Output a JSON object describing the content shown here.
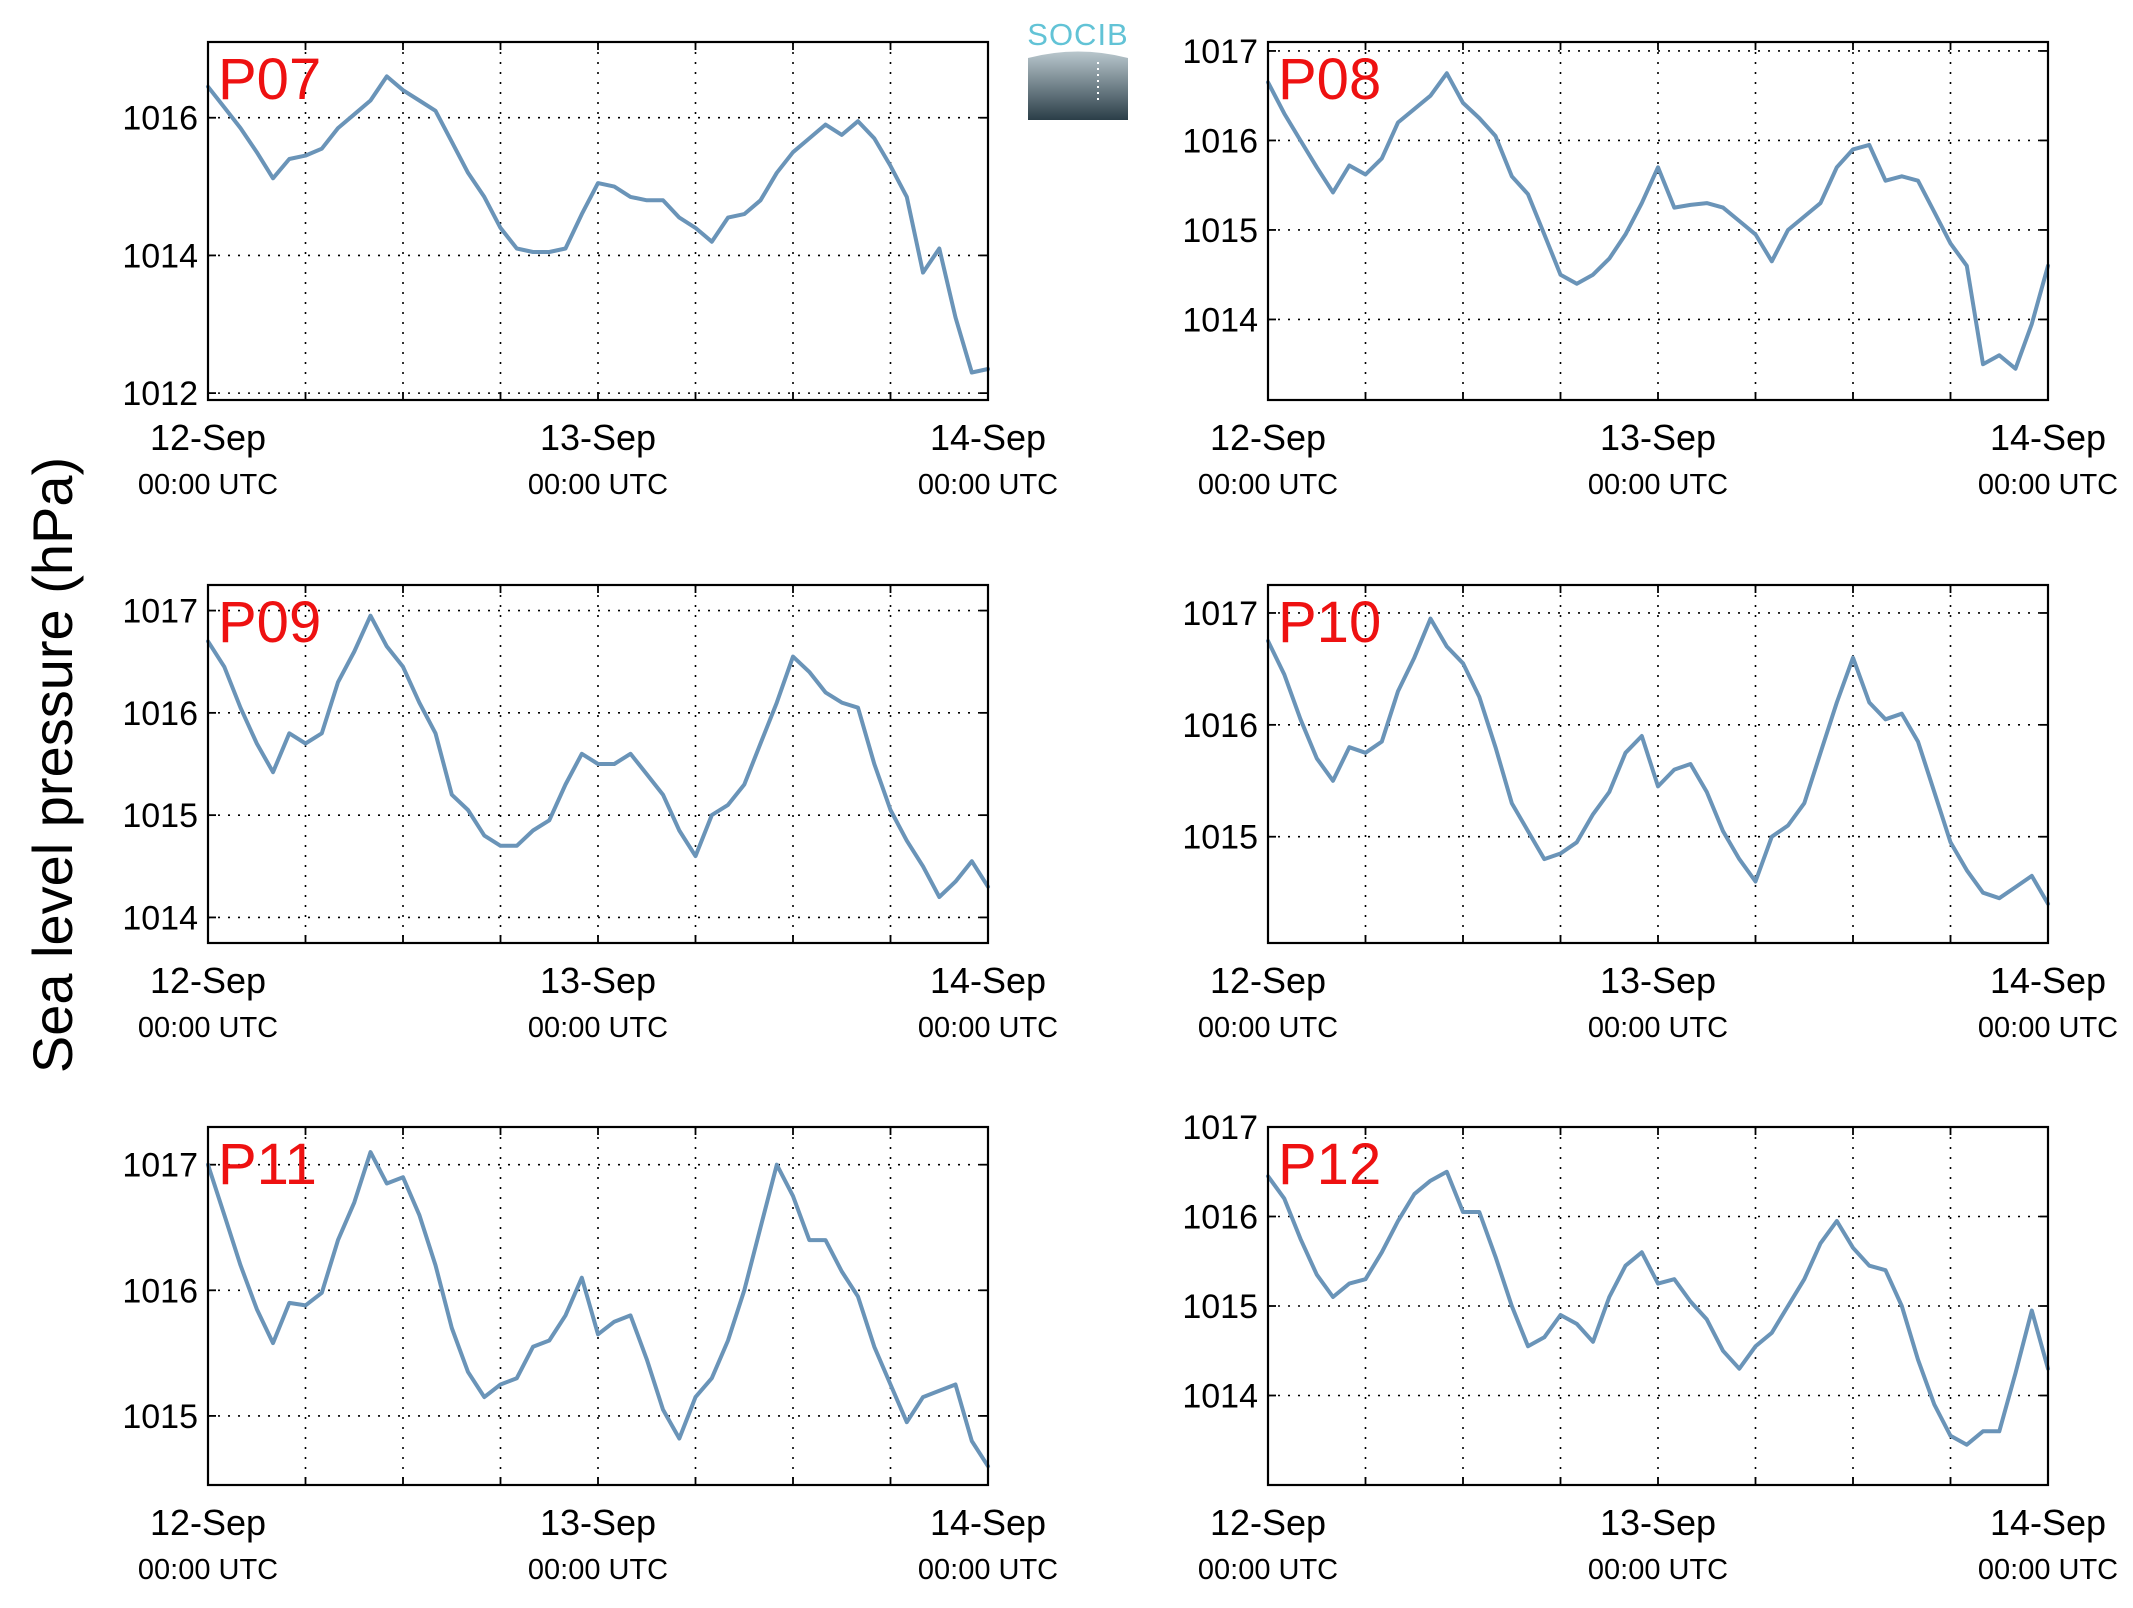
{
  "figure": {
    "ylabel": "Sea level pressure (hPa)",
    "logo_text": "SOCIB",
    "colors": {
      "series": "#6a94b8",
      "panel_label": "#ee1111",
      "logo_text": "#62c3d6",
      "logo_top": "#b9c7cd",
      "logo_bottom": "#2b3e48"
    }
  },
  "chart_data": [
    {
      "type": "line",
      "title": "",
      "panel_label": "P07",
      "xlabel": "",
      "ylabel": "Sea level pressure (hPa)",
      "x_range": [
        "2013-09-12T00:00",
        "2013-09-14T00:00"
      ],
      "xticks": [
        {
          "date": "12-Sep",
          "time": "00:00 UTC"
        },
        {
          "date": "13-Sep",
          "time": "00:00 UTC"
        },
        {
          "date": "14-Sep",
          "time": "00:00 UTC"
        }
      ],
      "ylim": [
        1011.9,
        1017.1
      ],
      "yticks": [
        1012,
        1014,
        1016
      ],
      "grid": true,
      "series": [
        {
          "x_hours": [
            0,
            1,
            2,
            3,
            4,
            5,
            6,
            7,
            8,
            9,
            10,
            11,
            12,
            13,
            14,
            15,
            16,
            17,
            18,
            19,
            20,
            21,
            22,
            23,
            24,
            25,
            26,
            27,
            28,
            29,
            30,
            31,
            32,
            33,
            34,
            35,
            36,
            37,
            38,
            39,
            40,
            41,
            42,
            43,
            44,
            45,
            46,
            47,
            48
          ],
          "values": [
            1016.45,
            1016.15,
            1015.85,
            1015.5,
            1015.12,
            1015.4,
            1015.45,
            1015.55,
            1015.85,
            1016.05,
            1016.25,
            1016.6,
            1016.4,
            1016.25,
            1016.1,
            1015.65,
            1015.2,
            1014.85,
            1014.4,
            1014.1,
            1014.05,
            1014.05,
            1014.1,
            1014.6,
            1015.05,
            1015.0,
            1014.85,
            1014.8,
            1014.8,
            1014.55,
            1014.4,
            1014.2,
            1014.55,
            1014.6,
            1014.8,
            1015.2,
            1015.5,
            1015.7,
            1015.9,
            1015.75,
            1015.95,
            1015.7,
            1015.3,
            1014.85,
            1013.75,
            1014.1,
            1013.1,
            1012.3,
            1012.35
          ]
        }
      ]
    },
    {
      "type": "line",
      "title": "",
      "panel_label": "P08",
      "xlabel": "",
      "ylabel": "Sea level pressure (hPa)",
      "x_range": [
        "2013-09-12T00:00",
        "2013-09-14T00:00"
      ],
      "xticks": [
        {
          "date": "12-Sep",
          "time": "00:00 UTC"
        },
        {
          "date": "13-Sep",
          "time": "00:00 UTC"
        },
        {
          "date": "14-Sep",
          "time": "00:00 UTC"
        }
      ],
      "ylim": [
        1013.1,
        1017.1
      ],
      "yticks": [
        1014,
        1015,
        1016,
        1017
      ],
      "grid": true,
      "series": [
        {
          "x_hours": [
            0,
            1,
            2,
            3,
            4,
            5,
            6,
            7,
            8,
            9,
            10,
            11,
            12,
            13,
            14,
            15,
            16,
            17,
            18,
            19,
            20,
            21,
            22,
            23,
            24,
            25,
            26,
            27,
            28,
            29,
            30,
            31,
            32,
            33,
            34,
            35,
            36,
            37,
            38,
            39,
            40,
            41,
            42,
            43,
            44,
            45,
            46,
            47,
            48
          ],
          "values": [
            1016.65,
            1016.3,
            1016.0,
            1015.7,
            1015.42,
            1015.72,
            1015.62,
            1015.8,
            1016.2,
            1016.35,
            1016.5,
            1016.75,
            1016.42,
            1016.25,
            1016.05,
            1015.6,
            1015.4,
            1014.95,
            1014.5,
            1014.4,
            1014.5,
            1014.68,
            1014.95,
            1015.3,
            1015.7,
            1015.25,
            1015.28,
            1015.3,
            1015.25,
            1015.1,
            1014.95,
            1014.65,
            1015.0,
            1015.15,
            1015.3,
            1015.7,
            1015.9,
            1015.95,
            1015.55,
            1015.6,
            1015.55,
            1015.2,
            1014.85,
            1014.6,
            1013.5,
            1013.6,
            1013.45,
            1013.95,
            1014.6
          ]
        }
      ]
    },
    {
      "type": "line",
      "title": "",
      "panel_label": "P09",
      "xlabel": "",
      "ylabel": "Sea level pressure (hPa)",
      "x_range": [
        "2013-09-12T00:00",
        "2013-09-14T00:00"
      ],
      "xticks": [
        {
          "date": "12-Sep",
          "time": "00:00 UTC"
        },
        {
          "date": "13-Sep",
          "time": "00:00 UTC"
        },
        {
          "date": "14-Sep",
          "time": "00:00 UTC"
        }
      ],
      "ylim": [
        1013.75,
        1017.25
      ],
      "yticks": [
        1014,
        1015,
        1016,
        1017
      ],
      "grid": true,
      "series": [
        {
          "x_hours": [
            0,
            1,
            2,
            3,
            4,
            5,
            6,
            7,
            8,
            9,
            10,
            11,
            12,
            13,
            14,
            15,
            16,
            17,
            18,
            19,
            20,
            21,
            22,
            23,
            24,
            25,
            26,
            27,
            28,
            29,
            30,
            31,
            32,
            33,
            34,
            35,
            36,
            37,
            38,
            39,
            40,
            41,
            42,
            43,
            44,
            45,
            46,
            47,
            48
          ],
          "values": [
            1016.7,
            1016.45,
            1016.05,
            1015.7,
            1015.42,
            1015.8,
            1015.7,
            1015.8,
            1016.3,
            1016.6,
            1016.95,
            1016.65,
            1016.45,
            1016.1,
            1015.8,
            1015.2,
            1015.05,
            1014.8,
            1014.7,
            1014.7,
            1014.85,
            1014.95,
            1015.3,
            1015.6,
            1015.5,
            1015.5,
            1015.6,
            1015.4,
            1015.2,
            1014.85,
            1014.6,
            1015.0,
            1015.1,
            1015.3,
            1015.7,
            1016.1,
            1016.55,
            1016.4,
            1016.2,
            1016.1,
            1016.05,
            1015.5,
            1015.05,
            1014.75,
            1014.5,
            1014.2,
            1014.35,
            1014.55,
            1014.3
          ]
        }
      ]
    },
    {
      "type": "line",
      "title": "",
      "panel_label": "P10",
      "xlabel": "",
      "ylabel": "Sea level pressure (hPa)",
      "x_range": [
        "2013-09-12T00:00",
        "2013-09-14T00:00"
      ],
      "xticks": [
        {
          "date": "12-Sep",
          "time": "00:00 UTC"
        },
        {
          "date": "13-Sep",
          "time": "00:00 UTC"
        },
        {
          "date": "14-Sep",
          "time": "00:00 UTC"
        }
      ],
      "ylim": [
        1014.05,
        1017.25
      ],
      "yticks": [
        1015,
        1016,
        1017
      ],
      "grid": true,
      "series": [
        {
          "x_hours": [
            0,
            1,
            2,
            3,
            4,
            5,
            6,
            7,
            8,
            9,
            10,
            11,
            12,
            13,
            14,
            15,
            16,
            17,
            18,
            19,
            20,
            21,
            22,
            23,
            24,
            25,
            26,
            27,
            28,
            29,
            30,
            31,
            32,
            33,
            34,
            35,
            36,
            37,
            38,
            39,
            40,
            41,
            42,
            43,
            44,
            45,
            46,
            47,
            48
          ],
          "values": [
            1016.75,
            1016.45,
            1016.05,
            1015.7,
            1015.5,
            1015.8,
            1015.75,
            1015.85,
            1016.3,
            1016.6,
            1016.95,
            1016.7,
            1016.55,
            1016.25,
            1015.8,
            1015.3,
            1015.05,
            1014.8,
            1014.85,
            1014.95,
            1015.2,
            1015.4,
            1015.75,
            1015.9,
            1015.45,
            1015.6,
            1015.65,
            1015.4,
            1015.05,
            1014.8,
            1014.6,
            1015.0,
            1015.1,
            1015.3,
            1015.75,
            1016.2,
            1016.6,
            1016.2,
            1016.05,
            1016.1,
            1015.85,
            1015.4,
            1014.95,
            1014.7,
            1014.5,
            1014.45,
            1014.55,
            1014.65,
            1014.4
          ]
        }
      ]
    },
    {
      "type": "line",
      "title": "",
      "panel_label": "P11",
      "xlabel": "",
      "ylabel": "Sea level pressure (hPa)",
      "x_range": [
        "2013-09-12T00:00",
        "2013-09-14T00:00"
      ],
      "xticks": [
        {
          "date": "12-Sep",
          "time": "00:00 UTC"
        },
        {
          "date": "13-Sep",
          "time": "00:00 UTC"
        },
        {
          "date": "14-Sep",
          "time": "00:00 UTC"
        }
      ],
      "ylim": [
        1014.45,
        1017.3
      ],
      "yticks": [
        1015,
        1016,
        1017
      ],
      "grid": true,
      "series": [
        {
          "x_hours": [
            0,
            1,
            2,
            3,
            4,
            5,
            6,
            7,
            8,
            9,
            10,
            11,
            12,
            13,
            14,
            15,
            16,
            17,
            18,
            19,
            20,
            21,
            22,
            23,
            24,
            25,
            26,
            27,
            28,
            29,
            30,
            31,
            32,
            33,
            34,
            35,
            36,
            37,
            38,
            39,
            40,
            41,
            42,
            43,
            44,
            45,
            46,
            47,
            48
          ],
          "values": [
            1017.0,
            1016.6,
            1016.2,
            1015.85,
            1015.58,
            1015.9,
            1015.88,
            1015.98,
            1016.4,
            1016.7,
            1017.1,
            1016.85,
            1016.9,
            1016.6,
            1016.2,
            1015.7,
            1015.35,
            1015.15,
            1015.25,
            1015.3,
            1015.55,
            1015.6,
            1015.8,
            1016.1,
            1015.65,
            1015.75,
            1015.8,
            1015.45,
            1015.05,
            1014.82,
            1015.15,
            1015.3,
            1015.6,
            1016.0,
            1016.5,
            1017.0,
            1016.75,
            1016.4,
            1016.4,
            1016.15,
            1015.95,
            1015.55,
            1015.25,
            1014.95,
            1015.15,
            1015.2,
            1015.25,
            1014.8,
            1014.6
          ]
        }
      ]
    },
    {
      "type": "line",
      "title": "",
      "panel_label": "P12",
      "xlabel": "",
      "ylabel": "Sea level pressure (hPa)",
      "x_range": [
        "2013-09-12T00:00",
        "2013-09-14T00:00"
      ],
      "xticks": [
        {
          "date": "12-Sep",
          "time": "00:00 UTC"
        },
        {
          "date": "13-Sep",
          "time": "00:00 UTC"
        },
        {
          "date": "14-Sep",
          "time": "00:00 UTC"
        }
      ],
      "ylim": [
        1013.0,
        1017.0
      ],
      "yticks": [
        1014,
        1015,
        1016,
        1017
      ],
      "grid": true,
      "series": [
        {
          "x_hours": [
            0,
            1,
            2,
            3,
            4,
            5,
            6,
            7,
            8,
            9,
            10,
            11,
            12,
            13,
            14,
            15,
            16,
            17,
            18,
            19,
            20,
            21,
            22,
            23,
            24,
            25,
            26,
            27,
            28,
            29,
            30,
            31,
            32,
            33,
            34,
            35,
            36,
            37,
            38,
            39,
            40,
            41,
            42,
            43,
            44,
            45,
            46,
            47,
            48
          ],
          "values": [
            1016.45,
            1016.2,
            1015.75,
            1015.35,
            1015.1,
            1015.25,
            1015.3,
            1015.6,
            1015.95,
            1016.25,
            1016.4,
            1016.5,
            1016.05,
            1016.05,
            1015.55,
            1015.0,
            1014.55,
            1014.65,
            1014.9,
            1014.8,
            1014.6,
            1015.1,
            1015.45,
            1015.6,
            1015.25,
            1015.3,
            1015.05,
            1014.85,
            1014.5,
            1014.3,
            1014.55,
            1014.7,
            1015.0,
            1015.3,
            1015.7,
            1015.95,
            1015.65,
            1015.45,
            1015.4,
            1015.0,
            1014.4,
            1013.9,
            1013.55,
            1013.45,
            1013.6,
            1013.6,
            1014.25,
            1014.95,
            1014.3
          ]
        }
      ]
    }
  ]
}
